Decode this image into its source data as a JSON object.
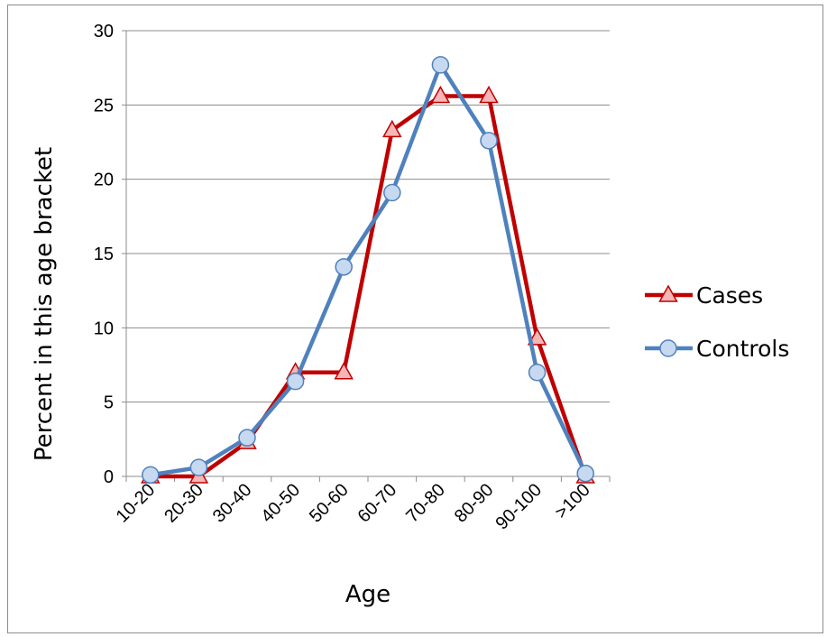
{
  "chart_data": {
    "type": "line",
    "xlabel": "Age",
    "ylabel": "Percent in this age bracket",
    "ylim": [
      0,
      30
    ],
    "yticks": [
      "0",
      "5",
      "10",
      "15",
      "20",
      "25",
      "30"
    ],
    "categories": [
      "10-20",
      "20-30",
      "30-40",
      "40-50",
      "50-60",
      "60-70",
      "70-80",
      "80-90",
      "90-100",
      ">100"
    ],
    "grid": "horizontal",
    "legend_position": "right",
    "series": [
      {
        "name": "Cases",
        "values": [
          0,
          0,
          2.3,
          7.0,
          7.0,
          23.3,
          25.6,
          25.6,
          9.3,
          0
        ],
        "color": "#c00000",
        "marker": "triangle",
        "marker_fill": "#f4b6b6"
      },
      {
        "name": "Controls",
        "values": [
          0.1,
          0.6,
          2.6,
          6.4,
          14.1,
          19.1,
          27.7,
          22.6,
          7.0,
          0.2
        ],
        "color": "#4f81bd",
        "marker": "circle",
        "marker_fill": "#c6d9f1"
      }
    ]
  }
}
